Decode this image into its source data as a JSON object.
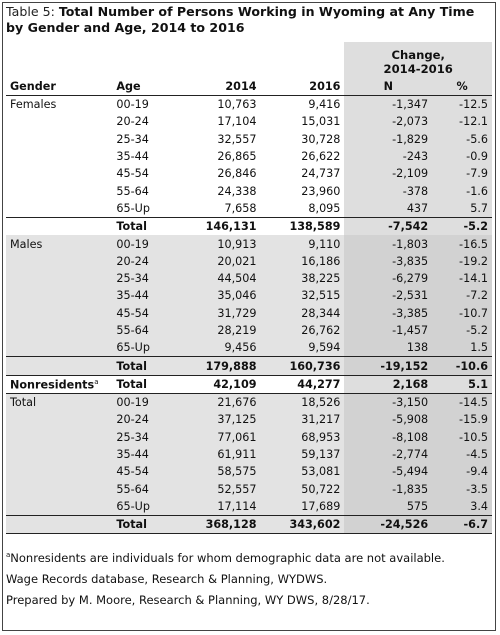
{
  "title": {
    "label": "Table 5:",
    "text": "Total Number of Persons Working in Wyoming at Any Time by Gender and Age, 2014 to 2016"
  },
  "columns": {
    "gender": "Gender",
    "age": "Age",
    "y2014": "2014",
    "y2016": "2016",
    "change_line1": "Change,",
    "change_line2": "2014-2016",
    "n": "N",
    "pct": "%"
  },
  "groups": [
    {
      "name": "Females",
      "rows": [
        {
          "age": "00-19",
          "y2014": "10,763",
          "y2016": "9,416",
          "n": "-1,347",
          "pct": "-12.5"
        },
        {
          "age": "20-24",
          "y2014": "17,104",
          "y2016": "15,031",
          "n": "-2,073",
          "pct": "-12.1"
        },
        {
          "age": "25-34",
          "y2014": "32,557",
          "y2016": "30,728",
          "n": "-1,829",
          "pct": "-5.6"
        },
        {
          "age": "35-44",
          "y2014": "26,865",
          "y2016": "26,622",
          "n": "-243",
          "pct": "-0.9"
        },
        {
          "age": "45-54",
          "y2014": "26,846",
          "y2016": "24,737",
          "n": "-2,109",
          "pct": "-7.9"
        },
        {
          "age": "55-64",
          "y2014": "24,338",
          "y2016": "23,960",
          "n": "-378",
          "pct": "-1.6"
        },
        {
          "age": "65-Up",
          "y2014": "7,658",
          "y2016": "8,095",
          "n": "437",
          "pct": "5.7"
        }
      ],
      "total": {
        "age": "Total",
        "y2014": "146,131",
        "y2016": "138,589",
        "n": "-7,542",
        "pct": "-5.2"
      }
    },
    {
      "name": "Males",
      "rows": [
        {
          "age": "00-19",
          "y2014": "10,913",
          "y2016": "9,110",
          "n": "-1,803",
          "pct": "-16.5"
        },
        {
          "age": "20-24",
          "y2014": "20,021",
          "y2016": "16,186",
          "n": "-3,835",
          "pct": "-19.2"
        },
        {
          "age": "25-34",
          "y2014": "44,504",
          "y2016": "38,225",
          "n": "-6,279",
          "pct": "-14.1"
        },
        {
          "age": "35-44",
          "y2014": "35,046",
          "y2016": "32,515",
          "n": "-2,531",
          "pct": "-7.2"
        },
        {
          "age": "45-54",
          "y2014": "31,729",
          "y2016": "28,344",
          "n": "-3,385",
          "pct": "-10.7"
        },
        {
          "age": "55-64",
          "y2014": "28,219",
          "y2016": "26,762",
          "n": "-1,457",
          "pct": "-5.2"
        },
        {
          "age": "65-Up",
          "y2014": "9,456",
          "y2016": "9,594",
          "n": "138",
          "pct": "1.5"
        }
      ],
      "total": {
        "age": "Total",
        "y2014": "179,888",
        "y2016": "160,736",
        "n": "-19,152",
        "pct": "-10.6"
      }
    },
    {
      "name": "Nonresidents",
      "marker": "a",
      "rows": [],
      "total": {
        "age": "Total",
        "y2014": "42,109",
        "y2016": "44,277",
        "n": "2,168",
        "pct": "5.1"
      }
    },
    {
      "name": "Total",
      "rows": [
        {
          "age": "00-19",
          "y2014": "21,676",
          "y2016": "18,526",
          "n": "-3,150",
          "pct": "-14.5"
        },
        {
          "age": "20-24",
          "y2014": "37,125",
          "y2016": "31,217",
          "n": "-5,908",
          "pct": "-15.9"
        },
        {
          "age": "25-34",
          "y2014": "77,061",
          "y2016": "68,953",
          "n": "-8,108",
          "pct": "-10.5"
        },
        {
          "age": "35-44",
          "y2014": "61,911",
          "y2016": "59,137",
          "n": "-2,774",
          "pct": "-4.5"
        },
        {
          "age": "45-54",
          "y2014": "58,575",
          "y2016": "53,081",
          "n": "-5,494",
          "pct": "-9.4"
        },
        {
          "age": "55-64",
          "y2014": "52,557",
          "y2016": "50,722",
          "n": "-1,835",
          "pct": "-3.5"
        },
        {
          "age": "65-Up",
          "y2014": "17,114",
          "y2016": "17,689",
          "n": "575",
          "pct": "3.4"
        }
      ],
      "total": {
        "age": "Total",
        "y2014": "368,128",
        "y2016": "343,602",
        "n": "-24,526",
        "pct": "-6.7"
      }
    }
  ],
  "footnotes": {
    "marker": "a",
    "note": "Nonresidents are individuals for whom demographic data are not available.",
    "source": "Wage Records database, Research & Planning, WYDWS.",
    "prepared": "Prepared by M. Moore, Research & Planning, WY DWS, 8/28/17."
  },
  "colors": {
    "shade": "#e3e3e3",
    "change_shade": "#dedede",
    "change_shade_dark": "#d2d2d2",
    "rule": "#222222"
  }
}
